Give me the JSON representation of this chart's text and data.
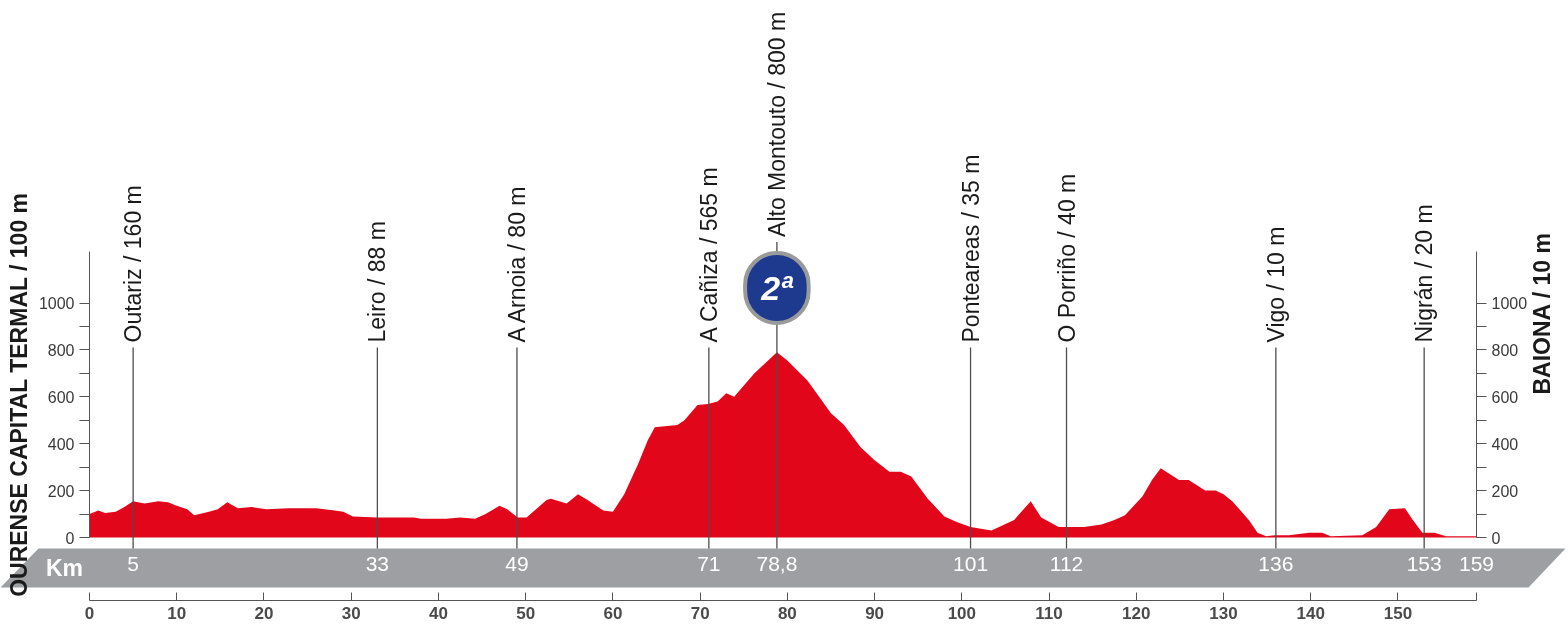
{
  "chart_data": {
    "type": "area",
    "ylabel": "OURENSE CAPITAL TERMAL / 100 m",
    "y2label": "BAIONA / 10 m",
    "x2label": "Km",
    "color": "#e2061b",
    "x": [
      0,
      1,
      1.8,
      3,
      4,
      5,
      6.3,
      7.9,
      9,
      10,
      11.2,
      12,
      13.7,
      14.7,
      15.8,
      17,
      18.6,
      20.3,
      22.8,
      26,
      28.1,
      29.1,
      30.2,
      33,
      37.2,
      38,
      40.9,
      42.5,
      44.2,
      45.4,
      47,
      47.9,
      49.1,
      50.1,
      52.4,
      52.9,
      54.7,
      56,
      57.1,
      58.9,
      60,
      61.3,
      62.9,
      64,
      64.8,
      67.4,
      68.2,
      69.7,
      70.9,
      72,
      73,
      73.9,
      76.2,
      78.8,
      80,
      82.3,
      85,
      86.5,
      88.4,
      90,
      91.7,
      93,
      94.2,
      96.1,
      98,
      99.5,
      101,
      103.4,
      106,
      107.9,
      109.1,
      111.1,
      112.1,
      114,
      116,
      117.5,
      118.7,
      120.7,
      121.8,
      122.8,
      124.9,
      126,
      127.9,
      129.1,
      130,
      131,
      132.9,
      133.9,
      134.9,
      135.9,
      137.5,
      139.8,
      141.3,
      142.3,
      145.9,
      147.5,
      149,
      150.8,
      151.7,
      152.8,
      154.2,
      155.5,
      159
    ],
    "values": [
      100,
      115,
      105,
      110,
      130,
      155,
      145,
      155,
      150,
      135,
      120,
      95,
      110,
      120,
      150,
      125,
      130,
      120,
      125,
      125,
      115,
      110,
      90,
      85,
      85,
      80,
      80,
      85,
      80,
      100,
      135,
      120,
      85,
      85,
      160,
      165,
      145,
      185,
      160,
      115,
      110,
      185,
      315,
      415,
      470,
      480,
      500,
      565,
      570,
      580,
      615,
      600,
      700,
      790,
      755,
      670,
      530,
      480,
      385,
      330,
      280,
      280,
      260,
      165,
      90,
      65,
      45,
      30,
      75,
      155,
      85,
      45,
      45,
      45,
      55,
      75,
      95,
      175,
      245,
      295,
      245,
      245,
      200,
      200,
      185,
      155,
      75,
      20,
      5,
      10,
      10,
      20,
      20,
      5,
      10,
      45,
      120,
      125,
      75,
      20,
      20,
      5,
      5
    ],
    "xlim": [
      0,
      159
    ],
    "xticks": [
      0,
      10,
      20,
      30,
      40,
      50,
      60,
      70,
      80,
      90,
      100,
      110,
      120,
      130,
      140,
      150,
      {
        "value": 159,
        "label": null
      }
    ],
    "ylim": [
      0,
      1220
    ],
    "yticks": [
      0,
      {
        "value": 100,
        "label": null
      },
      200,
      {
        "value": 300,
        "label": null
      },
      400,
      {
        "value": 500,
        "label": null
      },
      600,
      {
        "value": 700,
        "label": null
      },
      800,
      {
        "value": 900,
        "label": null
      },
      1000
    ],
    "y2lim": [
      0,
      1220
    ],
    "y2ticks": [
      0,
      {
        "value": 100,
        "label": null
      },
      200,
      {
        "value": 300,
        "label": null
      },
      400,
      {
        "value": 500,
        "label": null
      },
      600,
      {
        "value": 700,
        "label": null
      },
      800,
      {
        "value": 900,
        "label": null
      },
      1000
    ],
    "x2lim": [
      0,
      159
    ],
    "x2ticks": [
      5,
      33,
      49,
      71,
      {
        "value": 78.8,
        "label": "78,8"
      },
      101,
      112,
      136,
      153,
      159
    ],
    "ref_lines": [
      {
        "axis": "x",
        "value": 5,
        "label": "Outariz / 160 m"
      },
      {
        "axis": "x",
        "value": 33,
        "label": "Leiro / 88 m"
      },
      {
        "axis": "x",
        "value": 49,
        "label": "A Arnoia / 80 m"
      },
      {
        "axis": "x",
        "value": 71,
        "label": "A Cañiza / 565 m"
      },
      {
        "axis": "x",
        "value": 78.8,
        "label": "Alto Montouto / 800 m"
      },
      {
        "axis": "x",
        "value": 101,
        "label": "Ponteareas / 35 m"
      },
      {
        "axis": "x",
        "value": 112,
        "label": "O Porriño / 40 m"
      },
      {
        "axis": "x",
        "value": 136,
        "label": "Vigo / 10 m"
      },
      {
        "axis": "x",
        "value": 153,
        "label": "Nigrán / 20 m"
      }
    ],
    "annotations": [
      {
        "text": "2ª",
        "x": 78.8,
        "y": 800
      }
    ]
  }
}
